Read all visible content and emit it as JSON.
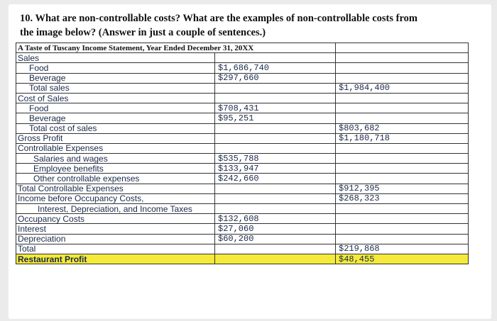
{
  "question": {
    "line1": "10. What are non-controllable costs? What are the examples of non-controllable costs from",
    "line2": "the image below? (Answer in just a couple of sentences.)"
  },
  "statement": {
    "title": "A Taste of Tuscany Income Statement, Year Ended December 31, 20XX",
    "rows": [
      {
        "label": "Sales",
        "indent": 0,
        "mid": "",
        "right": ""
      },
      {
        "label": "Food",
        "indent": 1,
        "mid": "$1,686,740",
        "right": ""
      },
      {
        "label": "Beverage",
        "indent": 1,
        "mid": "$297,660",
        "right": ""
      },
      {
        "label": "Total sales",
        "indent": 1,
        "mid": "",
        "right": "$1,984,400"
      },
      {
        "label": "Cost of Sales",
        "indent": 0,
        "mid": "",
        "right": ""
      },
      {
        "label": "Food",
        "indent": 1,
        "mid": "$708,431",
        "right": ""
      },
      {
        "label": "Beverage",
        "indent": 1,
        "mid": "$95,251",
        "right": ""
      },
      {
        "label": "Total cost of sales",
        "indent": 1,
        "mid": "",
        "right": "$803,682"
      },
      {
        "label": "Gross Profit",
        "indent": 0,
        "mid": "",
        "right": "$1,180,718"
      },
      {
        "label": "Controllable Expenses",
        "indent": 0,
        "mid": "",
        "right": ""
      },
      {
        "label": "Salaries and wages",
        "indent": 2,
        "mid": "$535,788",
        "right": ""
      },
      {
        "label": "Employee benefits",
        "indent": 2,
        "mid": "$133,947",
        "right": ""
      },
      {
        "label": "Other controllable expenses",
        "indent": 2,
        "mid": "$242,660",
        "right": ""
      },
      {
        "label": "Total Controllable Expenses",
        "indent": 0,
        "mid": "",
        "right": "$912,395"
      },
      {
        "label": "Income before Occupancy Costs,",
        "indent": 0,
        "mid": "",
        "right": "$268,323"
      },
      {
        "label": "Interest, Depreciation, and Income Taxes",
        "indent": 3,
        "mid": "",
        "right": ""
      },
      {
        "label": "Occupancy Costs",
        "indent": 0,
        "mid": "$132,608",
        "right": ""
      },
      {
        "label": "Interest",
        "indent": 0,
        "mid": "$27,060",
        "right": ""
      },
      {
        "label": "Depreciation",
        "indent": 0,
        "mid": "$60,200",
        "right": ""
      },
      {
        "label": "Total",
        "indent": 0,
        "mid": "",
        "right": "$219,868"
      },
      {
        "label": "Restaurant Profit",
        "indent": 0,
        "mid": "",
        "right": "$48,455",
        "highlight": true
      }
    ]
  },
  "colors": {
    "page_background": "#ebebeb",
    "highlight": "#f5ea3a",
    "text": "#1a2a4a"
  }
}
